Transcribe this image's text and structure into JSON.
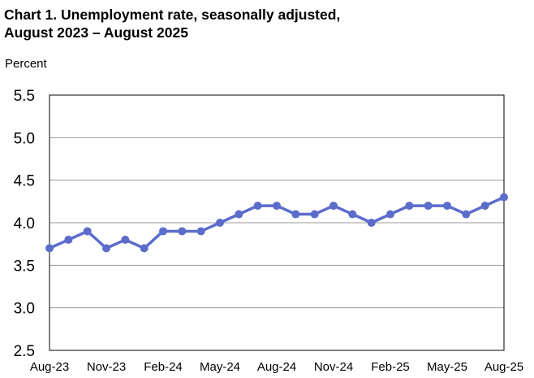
{
  "chart_data": {
    "type": "line",
    "title_line1": "Chart 1. Unemployment rate, seasonally adjusted,",
    "title_line2": "August 2023 – August 2025",
    "ylabel": "Percent",
    "xlabel": "",
    "ylim": [
      2.5,
      5.5
    ],
    "yticks": [
      "5.5",
      "5.0",
      "4.5",
      "4.0",
      "3.5",
      "3.0",
      "2.5"
    ],
    "xtick_labels": [
      "Aug-23",
      "Nov-23",
      "Feb-24",
      "May-24",
      "Aug-24",
      "Nov-24",
      "Feb-25",
      "May-25",
      "Aug-25"
    ],
    "grid": true,
    "line_color": "#5b6ccb",
    "series": [
      {
        "x": [
          "Aug-23",
          "Sep-23",
          "Oct-23",
          "Nov-23",
          "Dec-23",
          "Jan-24",
          "Feb-24",
          "Mar-24",
          "Apr-24",
          "May-24",
          "Jun-24",
          "Jul-24",
          "Aug-24",
          "Sep-24",
          "Oct-24",
          "Nov-24",
          "Dec-24",
          "Jan-25",
          "Feb-25",
          "Mar-25",
          "Apr-25",
          "May-25",
          "Jun-25",
          "Jul-25",
          "Aug-25"
        ],
        "values": [
          3.7,
          3.8,
          3.9,
          3.7,
          3.8,
          3.7,
          3.9,
          3.9,
          3.9,
          4.0,
          4.1,
          4.2,
          4.2,
          4.1,
          4.1,
          4.2,
          4.1,
          4.0,
          4.1,
          4.2,
          4.2,
          4.2,
          4.1,
          4.2,
          4.3
        ]
      }
    ]
  }
}
